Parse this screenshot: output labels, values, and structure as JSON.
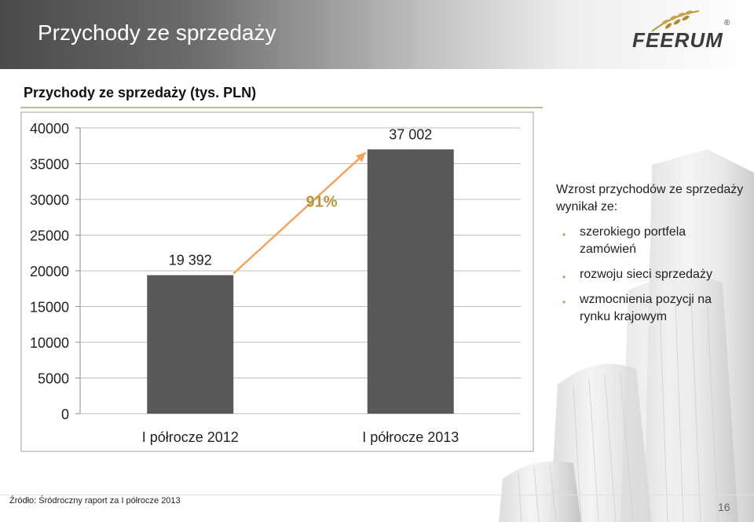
{
  "header": {
    "title": "Przychody ze sprzedaży",
    "logo_text": "FEERUM",
    "logo_reg": "®"
  },
  "chart_data": {
    "type": "bar",
    "title": "Przychody ze sprzedaży (tys. PLN)",
    "categories": [
      "I półrocze 2012",
      "I półrocze 2013"
    ],
    "values": [
      19392,
      37002
    ],
    "value_labels": [
      "19 392",
      "37 002"
    ],
    "ylim": [
      0,
      40000
    ],
    "yticks": [
      0,
      5000,
      10000,
      15000,
      20000,
      25000,
      30000,
      35000,
      40000
    ],
    "ytick_labels": [
      "0",
      "5000",
      "10000",
      "15000",
      "20000",
      "25000",
      "30000",
      "35000",
      "40000"
    ],
    "grid": true,
    "bar_color": "#595959",
    "arrow_color": "#f4a460",
    "annotation": "91%",
    "annotation_color": "#b8963c"
  },
  "commentary": {
    "intro": "Wzrost przychodów ze sprzedaży wynikał ze:",
    "bullets": [
      "szerokiego portfela zamówień",
      "rozwoju sieci sprzedaży",
      "wzmocnienia pozycji na rynku krajowym"
    ]
  },
  "footer": {
    "source": "Źródło: Śródroczny raport za I półrocze 2013",
    "page": "16"
  }
}
